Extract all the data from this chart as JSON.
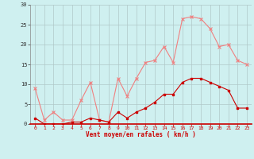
{
  "x": [
    0,
    1,
    2,
    3,
    4,
    5,
    6,
    7,
    8,
    9,
    10,
    11,
    12,
    13,
    14,
    15,
    16,
    17,
    18,
    19,
    20,
    21,
    22,
    23
  ],
  "rafales": [
    9,
    1,
    3,
    1,
    1,
    6,
    10.5,
    1,
    0.5,
    11.5,
    7,
    11.5,
    15.5,
    16,
    19.5,
    15.5,
    26.5,
    27,
    26.5,
    24,
    19.5,
    20,
    16,
    15
  ],
  "moyen": [
    1.5,
    0,
    0,
    0,
    0.5,
    0.5,
    1.5,
    1,
    0.5,
    3,
    1.5,
    3,
    4,
    5.5,
    7.5,
    7.5,
    10.5,
    11.5,
    11.5,
    10.5,
    9.5,
    8.5,
    4,
    4
  ],
  "bg_color": "#cff0f0",
  "grid_color": "#b0c8c8",
  "line_color_rafales": "#f08080",
  "line_color_moyen": "#cc0000",
  "marker_color_rafales": "#f08080",
  "marker_color_moyen": "#cc0000",
  "xlabel": "Vent moyen/en rafales ( km/h )",
  "ylim": [
    0,
    30
  ],
  "xlim": [
    -0.5,
    23.5
  ],
  "yticks": [
    0,
    5,
    10,
    15,
    20,
    25,
    30
  ],
  "xticks": [
    0,
    1,
    2,
    3,
    4,
    5,
    6,
    7,
    8,
    9,
    10,
    11,
    12,
    13,
    14,
    15,
    16,
    17,
    18,
    19,
    20,
    21,
    22,
    23
  ]
}
